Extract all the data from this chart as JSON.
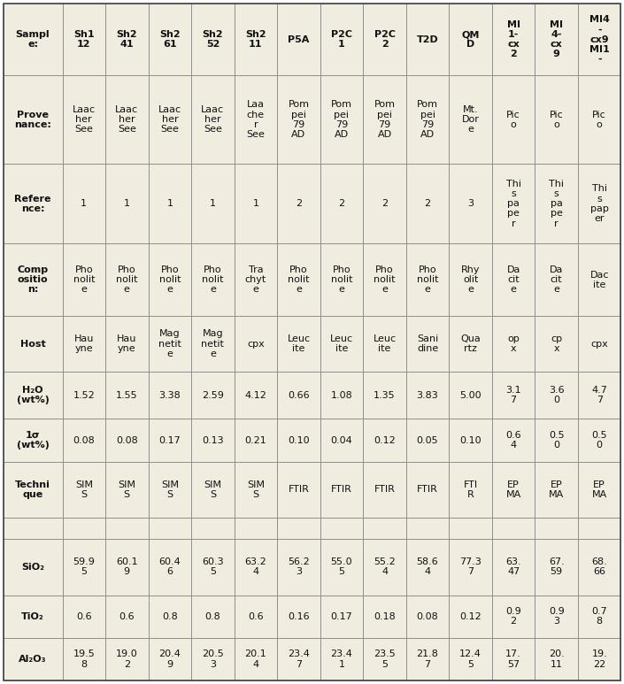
{
  "background_color": "#f0ece0",
  "border_color": "#888888",
  "rows": [
    [
      "Sampl\ne:",
      "Sh1\n12",
      "Sh2\n41",
      "Sh2\n61",
      "Sh2\n52",
      "Sh2\n11",
      "P5A",
      "P2C\n1",
      "P2C\n2",
      "T2D",
      "QM\nD",
      "MI\n1-\ncx\n2",
      "MI\n4-\ncx\n9",
      "MI4\n-\ncx9\nMI1\n-"
    ],
    [
      "Prove\nnance:",
      "Laac\nher\nSee",
      "Laac\nher\nSee",
      "Laac\nher\nSee",
      "Laac\nher\nSee",
      "Laa\nche\nr\nSee",
      "Pom\npei\n79\nAD",
      "Pom\npei\n79\nAD",
      "Pom\npei\n79\nAD",
      "Pom\npei\n79\nAD",
      "Mt.\nDor\ne",
      "Pic\no",
      "Pic\no",
      "Pic\no"
    ],
    [
      "Refere\nnce:",
      "1",
      "1",
      "1",
      "1",
      "1",
      "2",
      "2",
      "2",
      "2",
      "3",
      "Thi\ns\npa\npe\nr",
      "Thi\ns\npa\npe\nr",
      "Thi\ns\npap\ner"
    ],
    [
      "Comp\nositio\nn:",
      "Pho\nnolit\ne",
      "Pho\nnolit\ne",
      "Pho\nnolit\ne",
      "Pho\nnolit\ne",
      "Tra\nchyt\ne",
      "Pho\nnolit\ne",
      "Pho\nnolit\ne",
      "Pho\nnolit\ne",
      "Pho\nnolit\ne",
      "Rhy\nolit\ne",
      "Da\ncit\ne",
      "Da\ncit\ne",
      "Dac\nite"
    ],
    [
      "Host",
      "Hau\nyne",
      "Hau\nyne",
      "Mag\nnetit\ne",
      "Mag\nnetit\ne",
      "cpx",
      "Leuc\nite",
      "Leuc\nite",
      "Leuc\nite",
      "Sani\ndine",
      "Qua\nrtz",
      "op\nx",
      "cp\nx",
      "cpx"
    ],
    [
      "H₂O\n(wt%)",
      "1.52",
      "1.55",
      "3.38",
      "2.59",
      "4.12",
      "0.66",
      "1.08",
      "1.35",
      "3.83",
      "5.00",
      "3.1\n7",
      "3.6\n0",
      "4.7\n7"
    ],
    [
      "1σ\n(wt%)",
      "0.08",
      "0.08",
      "0.17",
      "0.13",
      "0.21",
      "0.10",
      "0.04",
      "0.12",
      "0.05",
      "0.10",
      "0.6\n4",
      "0.5\n0",
      "0.5\n0"
    ],
    [
      "Techni\nque",
      "SIM\nS",
      "SIM\nS",
      "SIM\nS",
      "SIM\nS",
      "SIM\nS",
      "FTIR",
      "FTIR",
      "FTIR",
      "FTIR",
      "FTI\nR",
      "EP\nMA",
      "EP\nMA",
      "EP\nMA"
    ],
    [
      "",
      "",
      "",
      "",
      "",
      "",
      "",
      "",
      "",
      "",
      "",
      "",
      "",
      ""
    ],
    [
      "SiO₂",
      "59.9\n5",
      "60.1\n9",
      "60.4\n6",
      "60.3\n5",
      "63.2\n4",
      "56.2\n3",
      "55.0\n5",
      "55.2\n4",
      "58.6\n4",
      "77.3\n7",
      "63.\n47",
      "67.\n59",
      "68.\n66"
    ],
    [
      "TiO₂",
      "0.6",
      "0.6",
      "0.8",
      "0.8",
      "0.6",
      "0.16",
      "0.17",
      "0.18",
      "0.08",
      "0.12",
      "0.9\n2",
      "0.9\n3",
      "0.7\n8"
    ],
    [
      "Al₂O₃",
      "19.5\n8",
      "19.0\n2",
      "20.4\n9",
      "20.5\n3",
      "20.1\n4",
      "23.4\n7",
      "23.4\n1",
      "23.5\n5",
      "21.8\n7",
      "12.4\n5",
      "17.\n57",
      "20.\n11",
      "19.\n22"
    ]
  ],
  "col_weights": [
    1.38,
    1.0,
    1.0,
    1.0,
    1.0,
    1.0,
    1.0,
    1.0,
    1.0,
    1.0,
    1.0,
    1.0,
    1.0,
    1.0
  ],
  "row_weights": [
    1.35,
    1.65,
    1.5,
    1.35,
    1.05,
    0.88,
    0.8,
    1.05,
    0.4,
    1.05,
    0.8,
    0.8
  ],
  "bold_first_col": true,
  "bold_first_row": true,
  "fontsize": 8.0,
  "text_color": "#111111",
  "empty_row_index": 8
}
